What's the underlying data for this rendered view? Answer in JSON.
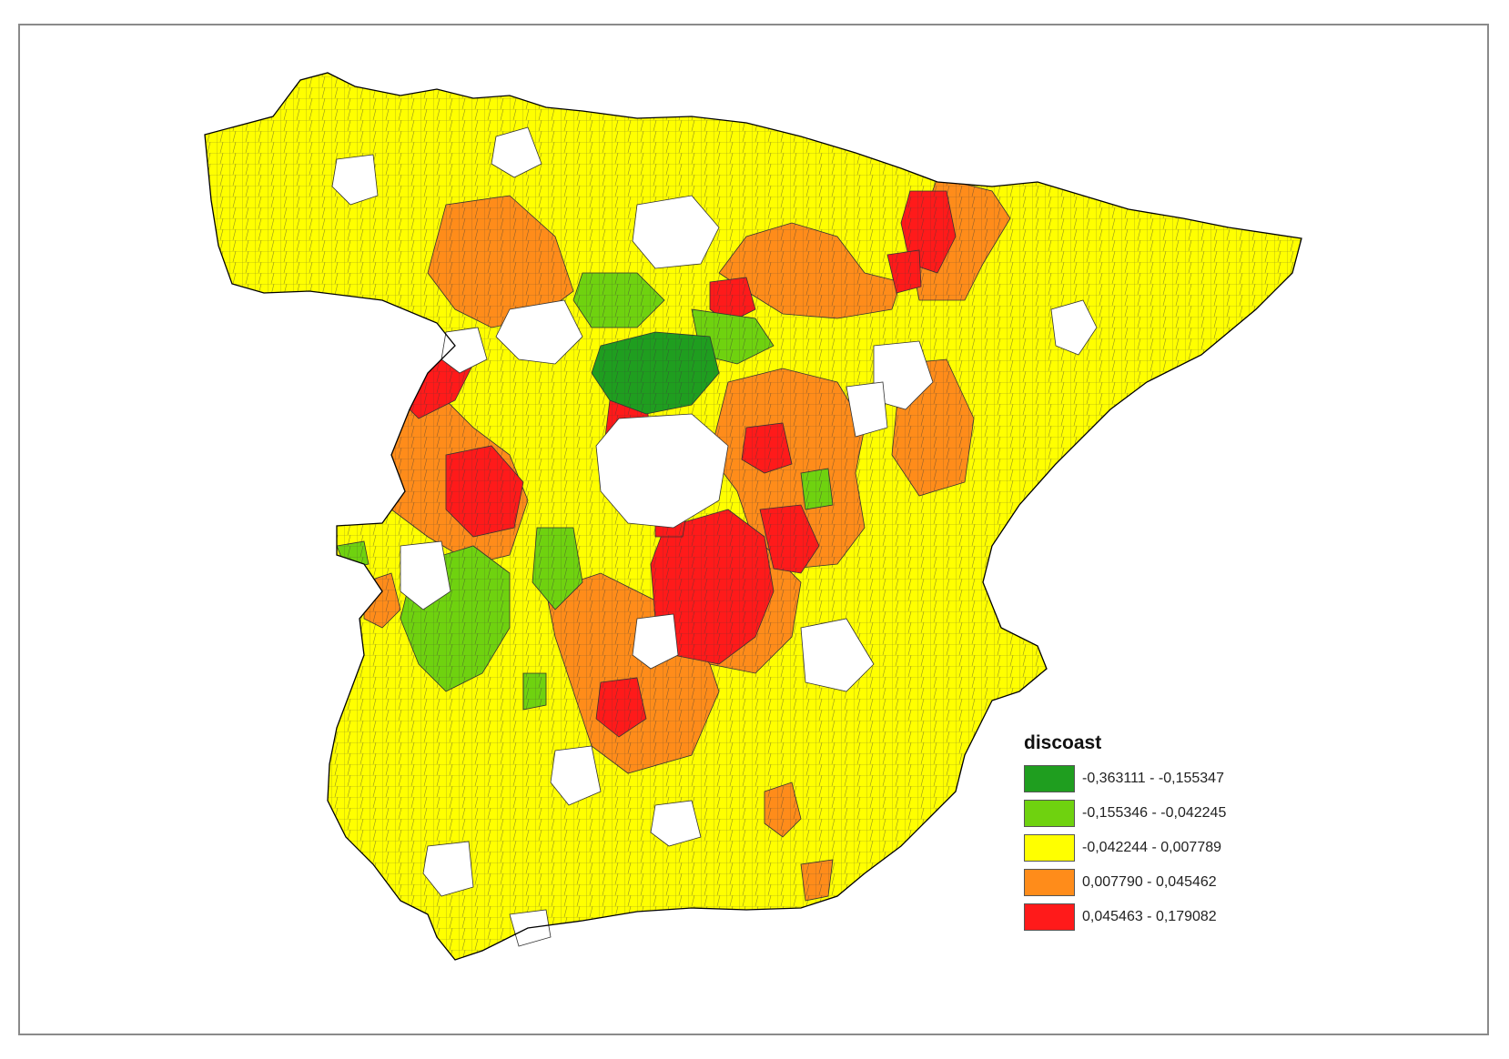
{
  "legend": {
    "title": "discoast",
    "classes": [
      {
        "label": "-0,363111 - -0,155347",
        "color": "#1f9e1f"
      },
      {
        "label": "-0,155346 - -0,042245",
        "color": "#6fd20f"
      },
      {
        "label": "-0,042244 - 0,007789",
        "color": "#ffff00"
      },
      {
        "label": "0,007790 - 0,045462",
        "color": "#ff8c1a"
      },
      {
        "label": "0,045463 - 0,179082",
        "color": "#ff1a1a"
      }
    ]
  },
  "colors": {
    "outline": "#333333",
    "coast": "#000000",
    "frame": "#8a8a8a",
    "background": "#ffffff"
  }
}
